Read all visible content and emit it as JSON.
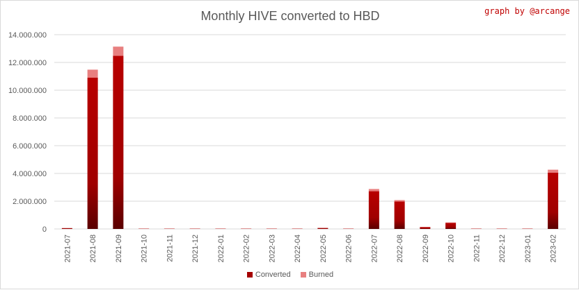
{
  "chart_data": {
    "type": "bar",
    "stacked": true,
    "title": "Monthly HIVE converted to HBD",
    "credit": "graph by @arcange",
    "xlabel": "",
    "ylabel": "",
    "ylim": [
      0,
      14000000
    ],
    "yticks": [
      0,
      2000000,
      4000000,
      6000000,
      8000000,
      10000000,
      12000000,
      14000000
    ],
    "ytick_labels": [
      "0",
      "2.000.000",
      "4.000.000",
      "6.000.000",
      "8.000.000",
      "10.000.000",
      "12.000.000",
      "14.000.000"
    ],
    "grid": true,
    "legend_position": "bottom",
    "categories": [
      "2021-07",
      "2021-08",
      "2021-09",
      "2021-10",
      "2021-11",
      "2021-12",
      "2022-01",
      "2022-02",
      "2022-03",
      "2022-04",
      "2022-05",
      "2022-06",
      "2022-07",
      "2022-08",
      "2022-09",
      "2022-10",
      "2022-11",
      "2022-12",
      "2023-01",
      "2023-02"
    ],
    "series": [
      {
        "name": "Converted",
        "color": "#a50000",
        "values": [
          60000,
          10900000,
          12480000,
          20000,
          20000,
          20000,
          20000,
          20000,
          20000,
          20000,
          70000,
          20000,
          2720000,
          1980000,
          130000,
          440000,
          20000,
          20000,
          20000,
          4050000
        ]
      },
      {
        "name": "Burned",
        "color": "#e88080",
        "values": [
          5000,
          580000,
          660000,
          10000,
          10000,
          10000,
          10000,
          10000,
          10000,
          10000,
          10000,
          10000,
          160000,
          100000,
          20000,
          30000,
          10000,
          10000,
          10000,
          220000
        ]
      }
    ]
  }
}
